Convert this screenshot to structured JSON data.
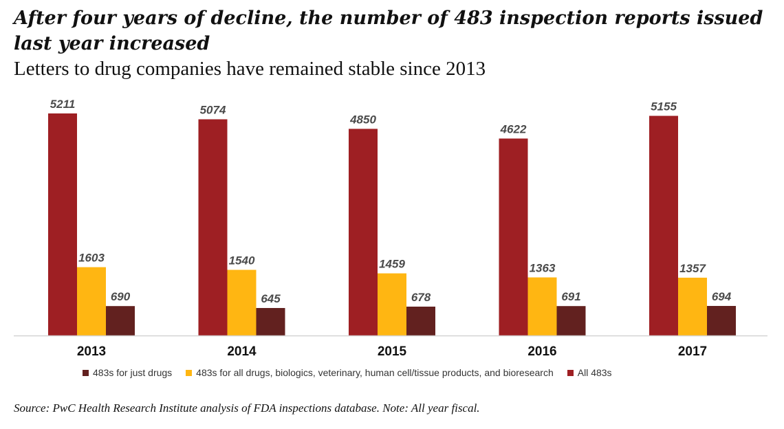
{
  "title": "After four years of decline, the number of 483 inspection reports issued last year increased",
  "subtitle": "Letters to drug companies have remained stable since 2013",
  "source": "Source: PwC Health Research Institute analysis of FDA inspections database. Note: All year fiscal.",
  "colors": {
    "all_483s": "#9e1f23",
    "all_drugs_etc": "#ffb612",
    "just_drugs": "#62211f"
  },
  "legend": [
    {
      "label": "483s for just drugs",
      "color": "#62211f"
    },
    {
      "label": "483s for all drugs, biologics, veterinary, human cell/tissue products, and bioresearch",
      "color": "#ffb612"
    },
    {
      "label": "All 483s",
      "color": "#9e1f23"
    }
  ],
  "chart_data": {
    "type": "bar",
    "categories": [
      "2013",
      "2014",
      "2015",
      "2016",
      "2017"
    ],
    "series": [
      {
        "name": "All 483s",
        "values": [
          5211,
          5074,
          4850,
          4622,
          5155
        ]
      },
      {
        "name": "483s for all drugs, biologics, veterinary, human cell/tissue products, and bioresearch",
        "values": [
          1603,
          1540,
          1459,
          1363,
          1357
        ]
      },
      {
        "name": "483s for just drugs",
        "values": [
          690,
          645,
          678,
          691,
          694
        ]
      }
    ],
    "ylim": [
      0,
      5211
    ],
    "grid": false,
    "legend_position": "bottom"
  }
}
